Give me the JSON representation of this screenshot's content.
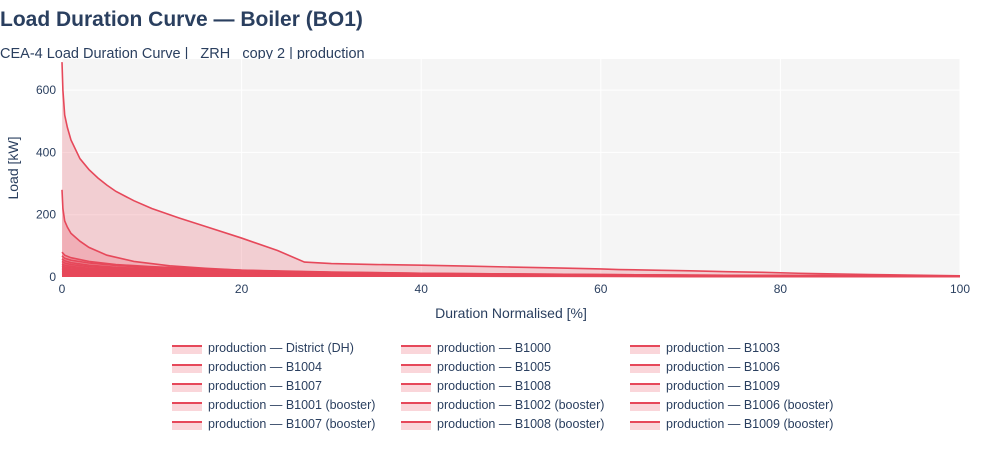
{
  "chart_data": {
    "type": "area",
    "title": "Load Duration Curve — Boiler (BO1)",
    "subtitle": "CEA-4 Load Duration Curve | _ZRH_ copy 2 | production",
    "xlabel": "Duration Normalised [%]",
    "ylabel": "Load [kW]",
    "xlim": [
      0,
      100
    ],
    "ylim": [
      0,
      700
    ],
    "xticks": [
      0,
      20,
      40,
      60,
      80,
      100
    ],
    "yticks": [
      0,
      200,
      400,
      600
    ],
    "grid": true,
    "legend_position": "bottom",
    "line_color": "#e6485a",
    "fill_color": "rgba(230,70,85,0.22)",
    "series": [
      {
        "name": "production — District (DH)",
        "x": [
          0,
          0.1,
          0.3,
          0.6,
          1,
          2,
          3,
          4,
          5,
          6,
          8,
          10,
          13,
          16,
          20,
          24,
          27,
          30,
          35,
          40,
          45,
          50,
          55,
          60,
          62,
          66,
          70,
          74,
          78,
          82,
          86,
          90,
          95,
          100
        ],
        "y": [
          690,
          600,
          520,
          480,
          440,
          380,
          345,
          318,
          295,
          275,
          245,
          220,
          190,
          162,
          125,
          85,
          48,
          43,
          40,
          38,
          35,
          32,
          29,
          26,
          24,
          22,
          20,
          17,
          15,
          12,
          10,
          8,
          6,
          4
        ]
      },
      {
        "name": "production — B1000",
        "x": [
          0,
          0.1,
          0.3,
          0.6,
          1,
          2,
          3,
          5,
          8,
          12,
          16,
          20,
          25,
          30,
          40,
          50,
          60,
          70,
          80,
          90,
          100
        ],
        "y": [
          280,
          220,
          180,
          160,
          140,
          115,
          95,
          70,
          50,
          36,
          28,
          22,
          18,
          15,
          12,
          10,
          8,
          6,
          5,
          4,
          3
        ]
      },
      {
        "name": "production — B1003",
        "x": [
          0,
          0.3,
          1,
          3,
          6,
          10,
          15,
          20,
          30,
          40,
          50,
          60,
          70,
          80,
          90,
          100
        ],
        "y": [
          80,
          70,
          62,
          50,
          40,
          33,
          27,
          22,
          16,
          12,
          10,
          8,
          6,
          5,
          4,
          3
        ]
      },
      {
        "name": "production — B1004",
        "x": [
          0,
          0.3,
          1,
          3,
          6,
          10,
          15,
          20,
          30,
          40,
          50,
          60,
          70,
          80,
          90,
          100
        ],
        "y": [
          68,
          60,
          54,
          45,
          37,
          30,
          25,
          20,
          15,
          11,
          9,
          7,
          6,
          5,
          4,
          3
        ]
      },
      {
        "name": "production — B1005",
        "x": [
          0,
          0.3,
          1,
          3,
          6,
          10,
          15,
          20,
          30,
          40,
          50,
          60,
          70,
          80,
          90,
          100
        ],
        "y": [
          58,
          52,
          46,
          38,
          31,
          26,
          21,
          17,
          13,
          10,
          8,
          6,
          5,
          4,
          3,
          2
        ]
      },
      {
        "name": "production — B1006",
        "x": [
          0,
          0.3,
          1,
          3,
          6,
          10,
          15,
          20,
          30,
          40,
          50,
          60,
          70,
          80,
          90,
          100
        ],
        "y": [
          50,
          45,
          40,
          33,
          27,
          22,
          18,
          15,
          11,
          9,
          7,
          6,
          5,
          4,
          3,
          2
        ]
      },
      {
        "name": "production — B1007",
        "x": [
          0,
          0.3,
          1,
          3,
          6,
          10,
          15,
          20,
          30,
          40,
          50,
          60,
          70,
          80,
          90,
          100
        ],
        "y": [
          42,
          38,
          34,
          28,
          23,
          19,
          16,
          13,
          10,
          8,
          6,
          5,
          4,
          3,
          2,
          2
        ]
      },
      {
        "name": "production — B1008",
        "x": [
          0,
          0.3,
          1,
          3,
          6,
          10,
          15,
          20,
          30,
          40,
          50,
          60,
          70,
          80,
          90,
          100
        ],
        "y": [
          36,
          32,
          29,
          24,
          20,
          17,
          14,
          12,
          9,
          7,
          6,
          5,
          4,
          3,
          2,
          2
        ]
      },
      {
        "name": "production — B1009",
        "x": [
          0,
          0.3,
          1,
          3,
          6,
          10,
          15,
          20,
          30,
          40,
          50,
          60,
          70,
          80,
          90,
          100
        ],
        "y": [
          30,
          27,
          24,
          20,
          17,
          14,
          12,
          10,
          8,
          6,
          5,
          4,
          3,
          3,
          2,
          2
        ]
      },
      {
        "name": "production — B1001 (booster)",
        "x": [
          0,
          0.3,
          1,
          3,
          6,
          10,
          15,
          20,
          30,
          40,
          50,
          60,
          70,
          80,
          90,
          100
        ],
        "y": [
          25,
          22,
          20,
          17,
          14,
          12,
          10,
          9,
          7,
          6,
          5,
          4,
          3,
          2,
          2,
          1
        ]
      },
      {
        "name": "production — B1002 (booster)",
        "x": [
          0,
          0.3,
          1,
          3,
          6,
          10,
          15,
          20,
          30,
          40,
          50,
          60,
          70,
          80,
          90,
          100
        ],
        "y": [
          20,
          18,
          16,
          14,
          12,
          10,
          9,
          8,
          6,
          5,
          4,
          3,
          3,
          2,
          2,
          1
        ]
      },
      {
        "name": "production — B1006 (booster)",
        "x": [
          0,
          0.3,
          1,
          3,
          6,
          10,
          15,
          20,
          30,
          40,
          50,
          60,
          70,
          80,
          90,
          100
        ],
        "y": [
          16,
          15,
          13,
          11,
          10,
          9,
          8,
          7,
          5,
          4,
          4,
          3,
          2,
          2,
          1,
          1
        ]
      },
      {
        "name": "production — B1007 (booster)",
        "x": [
          0,
          0.3,
          1,
          3,
          6,
          10,
          15,
          20,
          30,
          40,
          50,
          60,
          70,
          80,
          90,
          100
        ],
        "y": [
          13,
          12,
          11,
          9,
          8,
          7,
          6,
          6,
          5,
          4,
          3,
          3,
          2,
          2,
          1,
          1
        ]
      },
      {
        "name": "production — B1008 (booster)",
        "x": [
          0,
          0.3,
          1,
          3,
          6,
          10,
          15,
          20,
          30,
          40,
          50,
          60,
          70,
          80,
          90,
          100
        ],
        "y": [
          10,
          9,
          8,
          7,
          6,
          6,
          5,
          5,
          4,
          3,
          3,
          2,
          2,
          1,
          1,
          1
        ]
      },
      {
        "name": "production — B1009 (booster)",
        "x": [
          0,
          0.3,
          1,
          3,
          6,
          10,
          15,
          20,
          30,
          40,
          50,
          60,
          70,
          80,
          90,
          100
        ],
        "y": [
          8,
          7,
          7,
          6,
          5,
          5,
          4,
          4,
          3,
          3,
          2,
          2,
          1,
          1,
          1,
          1
        ]
      }
    ]
  }
}
